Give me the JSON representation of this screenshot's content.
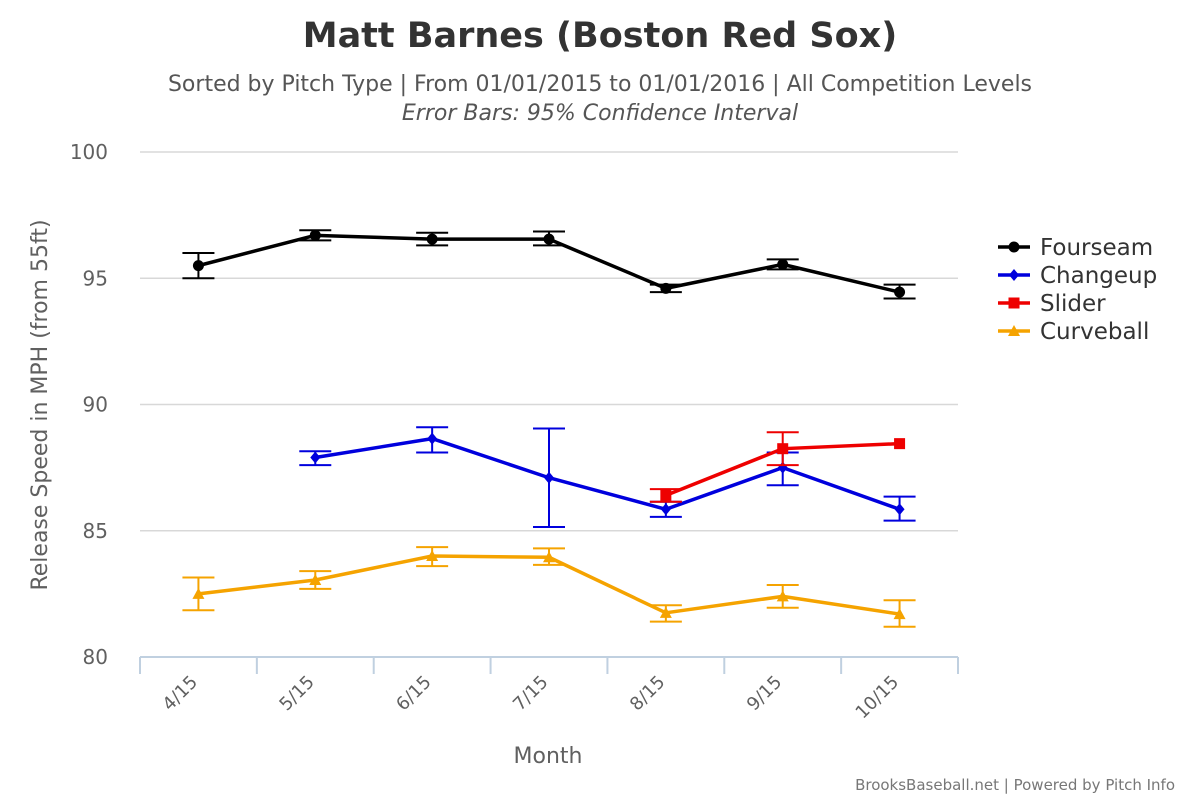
{
  "chart_data": {
    "type": "line",
    "title": "Matt Barnes (Boston Red Sox)",
    "subtitle": "Sorted by Pitch Type | From 01/01/2015 to 01/01/2016 | All Competition Levels",
    "subtitle2": "Error Bars: 95% Confidence Interval",
    "xlabel": "Month",
    "ylabel": "Release Speed in MPH (from 55ft)",
    "categories": [
      "4/15",
      "5/15",
      "6/15",
      "7/15",
      "8/15",
      "9/15",
      "10/15"
    ],
    "ylim": [
      80,
      100
    ],
    "yticks": [
      "80",
      "85",
      "90",
      "95",
      "100"
    ],
    "grid": true,
    "legend_position": "right",
    "series": [
      {
        "name": "Fourseam",
        "color": "#000000",
        "marker": "circle",
        "values": [
          95.5,
          96.7,
          96.55,
          96.55,
          94.6,
          95.55,
          94.45
        ],
        "error_low": [
          95.0,
          96.5,
          96.3,
          96.3,
          94.45,
          95.35,
          94.2
        ],
        "error_high": [
          96.0,
          96.9,
          96.8,
          96.85,
          94.75,
          95.75,
          94.75
        ]
      },
      {
        "name": "Changeup",
        "color": "#0000dd",
        "marker": "diamond",
        "values": [
          null,
          87.9,
          88.65,
          87.1,
          85.85,
          87.5,
          85.85
        ],
        "error_low": [
          null,
          87.6,
          88.1,
          85.15,
          85.55,
          86.8,
          85.4
        ],
        "error_high": [
          null,
          88.15,
          89.1,
          89.05,
          86.15,
          88.1,
          86.35
        ]
      },
      {
        "name": "Slider",
        "color": "#ee0000",
        "marker": "square",
        "values": [
          null,
          null,
          null,
          null,
          86.4,
          88.25,
          88.45
        ],
        "error_low": [
          null,
          null,
          null,
          null,
          86.15,
          87.6,
          88.45
        ],
        "error_high": [
          null,
          null,
          null,
          null,
          86.65,
          88.9,
          88.45
        ]
      },
      {
        "name": "Curveball",
        "color": "#f5a300",
        "marker": "triangle",
        "values": [
          82.5,
          83.05,
          84.0,
          83.95,
          81.75,
          82.4,
          81.7
        ],
        "error_low": [
          81.85,
          82.7,
          83.6,
          83.65,
          81.4,
          81.95,
          81.2
        ],
        "error_high": [
          83.15,
          83.4,
          84.35,
          84.3,
          82.05,
          82.85,
          82.25
        ]
      }
    ]
  },
  "credits": "BrooksBaseball.net | Powered by Pitch Info"
}
